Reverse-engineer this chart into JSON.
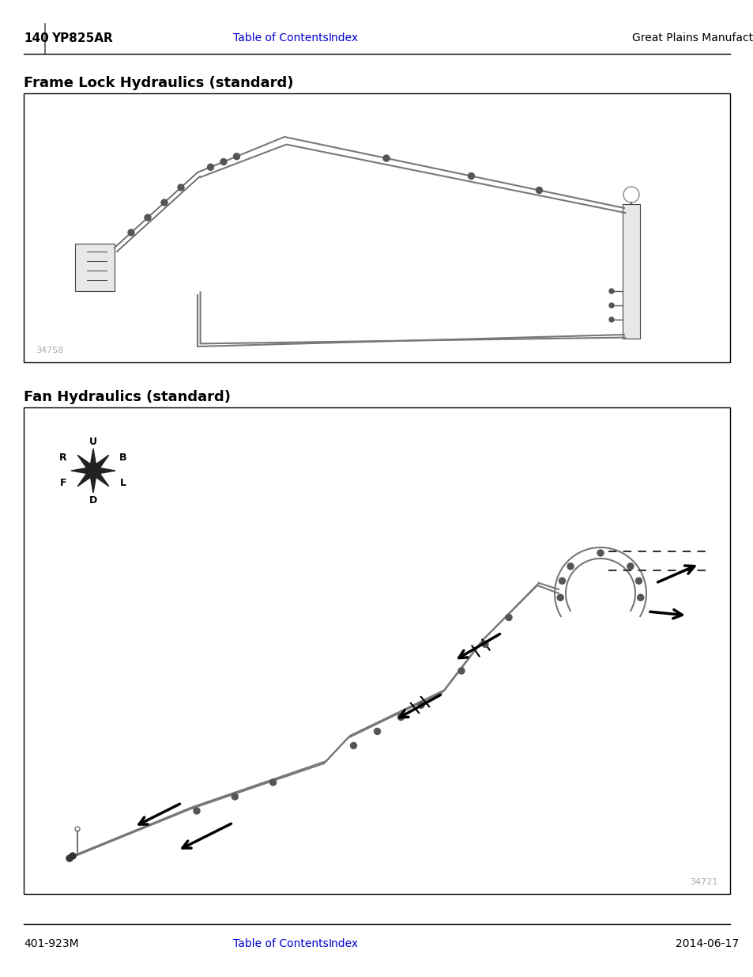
{
  "page_num": "140",
  "model": "YP825AR",
  "header_center_links": [
    "Table of Contents",
    "Index"
  ],
  "header_right": "Great Plains Manufacturing, Inc.",
  "footer_left": "401-923M",
  "footer_center_links": [
    "Table of Contents",
    "Index"
  ],
  "footer_right": "2014-06-17",
  "section1_title": "Frame Lock Hydraulics (standard)",
  "section1_fig_num": "34758",
  "section2_title": "Fan Hydraulics (standard)",
  "section2_fig_num": "34721",
  "link_color": "#0000CC",
  "text_color": "#000000",
  "light_gray": "#aaaaaa",
  "bg_color": "#ffffff",
  "box_border_color": "#000000",
  "header_line_color": "#000000"
}
